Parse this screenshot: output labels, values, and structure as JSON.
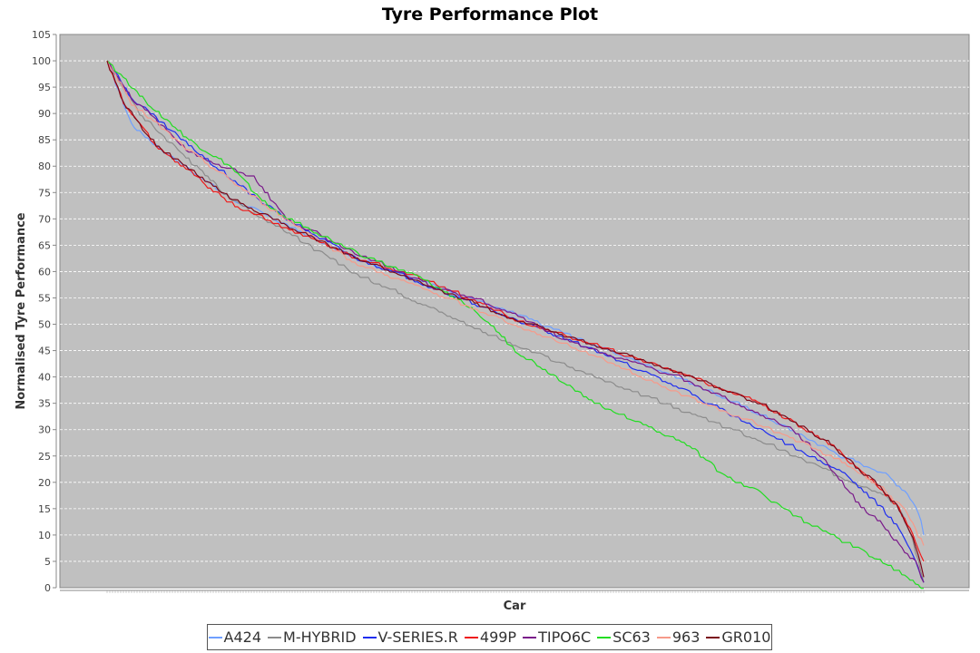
{
  "chart_data": {
    "type": "line",
    "title": "Tyre Performance Plot",
    "xlabel": "Car",
    "ylabel": "Normalised Tyre Performance",
    "ylim": [
      0,
      105
    ],
    "yticks": [
      0,
      5,
      10,
      15,
      20,
      25,
      30,
      35,
      40,
      45,
      50,
      55,
      60,
      65,
      70,
      75,
      80,
      85,
      90,
      95,
      100,
      105
    ],
    "x_points": 301,
    "grid": true,
    "legend": "bottom",
    "background": "#c0c0c0",
    "series": [
      {
        "name": "A424",
        "color": "#6f9fff",
        "keyframes": [
          [
            0,
            100
          ],
          [
            0.02,
            92
          ],
          [
            0.03,
            88
          ],
          [
            0.06,
            84
          ],
          [
            0.15,
            74
          ],
          [
            0.3,
            63
          ],
          [
            0.5,
            52
          ],
          [
            0.6,
            46
          ],
          [
            0.7,
            40
          ],
          [
            0.8,
            33
          ],
          [
            0.9,
            25
          ],
          [
            0.95,
            22
          ],
          [
            0.98,
            18
          ],
          [
            0.995,
            14
          ],
          [
            1.0,
            10
          ]
        ]
      },
      {
        "name": "M-HYBRID",
        "color": "#8c8c8c",
        "keyframes": [
          [
            0,
            100
          ],
          [
            0.04,
            90
          ],
          [
            0.15,
            74
          ],
          [
            0.3,
            60
          ],
          [
            0.4,
            53
          ],
          [
            0.5,
            46
          ],
          [
            0.6,
            40
          ],
          [
            0.7,
            34
          ],
          [
            0.8,
            28
          ],
          [
            0.9,
            21
          ],
          [
            0.95,
            18
          ],
          [
            0.97,
            15
          ],
          [
            0.985,
            10
          ],
          [
            1.0,
            1
          ]
        ]
      },
      {
        "name": "V-SERIES.R",
        "color": "#1f2eef",
        "keyframes": [
          [
            0,
            100
          ],
          [
            0.03,
            93
          ],
          [
            0.1,
            84
          ],
          [
            0.2,
            72
          ],
          [
            0.3,
            63
          ],
          [
            0.4,
            57
          ],
          [
            0.5,
            51
          ],
          [
            0.6,
            45
          ],
          [
            0.7,
            38
          ],
          [
            0.8,
            30
          ],
          [
            0.9,
            22
          ],
          [
            0.95,
            15
          ],
          [
            0.975,
            10
          ],
          [
            0.99,
            5
          ],
          [
            1.0,
            1
          ]
        ]
      },
      {
        "name": "499P",
        "color": "#ef1a1a",
        "keyframes": [
          [
            0,
            100
          ],
          [
            0.02,
            92
          ],
          [
            0.06,
            84
          ],
          [
            0.15,
            73
          ],
          [
            0.3,
            63
          ],
          [
            0.4,
            58
          ],
          [
            0.5,
            51
          ],
          [
            0.6,
            46
          ],
          [
            0.7,
            41
          ],
          [
            0.8,
            35
          ],
          [
            0.88,
            28
          ],
          [
            0.94,
            20
          ],
          [
            0.97,
            15
          ],
          [
            0.99,
            9
          ],
          [
            1.0,
            5
          ]
        ]
      },
      {
        "name": "TIPO6C",
        "color": "#7a1a8a",
        "keyframes": [
          [
            0,
            100
          ],
          [
            0.03,
            93
          ],
          [
            0.1,
            83
          ],
          [
            0.14,
            80
          ],
          [
            0.18,
            78
          ],
          [
            0.2,
            74
          ],
          [
            0.22,
            70
          ],
          [
            0.3,
            64
          ],
          [
            0.4,
            57
          ],
          [
            0.45,
            55
          ],
          [
            0.5,
            52
          ],
          [
            0.55,
            48
          ],
          [
            0.6,
            45
          ],
          [
            0.7,
            40
          ],
          [
            0.8,
            33
          ],
          [
            0.84,
            30
          ],
          [
            0.88,
            24
          ],
          [
            0.92,
            16
          ],
          [
            0.95,
            12
          ],
          [
            0.97,
            8
          ],
          [
            0.99,
            5
          ],
          [
            1.0,
            1
          ]
        ]
      },
      {
        "name": "SC63",
        "color": "#22dd22",
        "keyframes": [
          [
            0,
            100
          ],
          [
            0.05,
            92
          ],
          [
            0.1,
            85
          ],
          [
            0.15,
            80
          ],
          [
            0.2,
            72
          ],
          [
            0.3,
            64
          ],
          [
            0.38,
            59
          ],
          [
            0.45,
            53
          ],
          [
            0.5,
            45
          ],
          [
            0.55,
            40
          ],
          [
            0.6,
            35
          ],
          [
            0.7,
            28
          ],
          [
            0.72,
            26
          ],
          [
            0.75,
            22
          ],
          [
            0.8,
            18
          ],
          [
            0.85,
            13
          ],
          [
            0.9,
            9
          ],
          [
            0.95,
            5
          ],
          [
            0.98,
            2
          ],
          [
            1.0,
            0
          ]
        ]
      },
      {
        "name": "963",
        "color": "#f69a8a",
        "keyframes": [
          [
            0,
            100
          ],
          [
            0.03,
            92
          ],
          [
            0.1,
            83
          ],
          [
            0.2,
            72
          ],
          [
            0.3,
            62
          ],
          [
            0.4,
            56
          ],
          [
            0.5,
            50
          ],
          [
            0.6,
            44
          ],
          [
            0.7,
            37
          ],
          [
            0.8,
            31
          ],
          [
            0.9,
            24
          ],
          [
            0.95,
            19
          ],
          [
            0.98,
            14
          ],
          [
            1.0,
            8
          ]
        ]
      },
      {
        "name": "GR010",
        "color": "#7a0a1a",
        "keyframes": [
          [
            0,
            100
          ],
          [
            0.02,
            92
          ],
          [
            0.06,
            84
          ],
          [
            0.15,
            74
          ],
          [
            0.3,
            63
          ],
          [
            0.4,
            57
          ],
          [
            0.5,
            51
          ],
          [
            0.6,
            46
          ],
          [
            0.7,
            41
          ],
          [
            0.8,
            35
          ],
          [
            0.88,
            28
          ],
          [
            0.94,
            20
          ],
          [
            0.97,
            15
          ],
          [
            0.99,
            8
          ],
          [
            1.0,
            2
          ]
        ]
      }
    ]
  }
}
